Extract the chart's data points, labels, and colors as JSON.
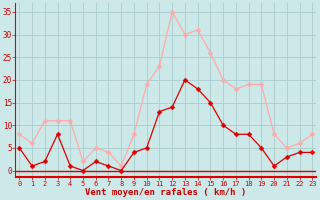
{
  "hours": [
    0,
    1,
    2,
    3,
    4,
    5,
    6,
    7,
    8,
    9,
    10,
    11,
    12,
    13,
    14,
    15,
    16,
    17,
    18,
    19,
    20,
    21,
    22,
    23
  ],
  "wind_avg": [
    5,
    1,
    2,
    8,
    1,
    0,
    2,
    1,
    0,
    4,
    5,
    13,
    14,
    20,
    18,
    15,
    10,
    8,
    8,
    5,
    1,
    3,
    4,
    4
  ],
  "wind_gust": [
    8,
    6,
    11,
    11,
    11,
    2,
    5,
    4,
    1,
    8,
    19,
    23,
    35,
    30,
    31,
    26,
    20,
    18,
    19,
    19,
    8,
    5,
    6,
    8
  ],
  "bg_color": "#cce8e8",
  "grid_color": "#aacccc",
  "avg_color": "#dd0000",
  "gust_color": "#ffaaaa",
  "xlabel": "Vent moyen/en rafales ( km/h )",
  "xlabel_color": "#cc0000",
  "tick_color": "#cc0000",
  "ylim": [
    -1.5,
    37
  ],
  "yticks": [
    0,
    5,
    10,
    15,
    20,
    25,
    30,
    35
  ],
  "xlim": [
    -0.3,
    23.3
  ]
}
